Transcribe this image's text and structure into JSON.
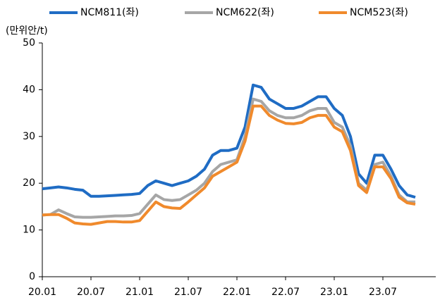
{
  "chart_data": {
    "type": "line",
    "y_unit": "(만위안/t)",
    "categories": [
      "20.01",
      null,
      null,
      null,
      null,
      null,
      "20.07",
      null,
      null,
      null,
      null,
      null,
      "21.01",
      null,
      null,
      null,
      null,
      null,
      "21.07",
      null,
      null,
      null,
      null,
      null,
      "22.01",
      null,
      null,
      null,
      null,
      null,
      "22.07",
      null,
      null,
      null,
      null,
      null,
      "23.01",
      null,
      null,
      null,
      null,
      null,
      "23.07",
      null,
      null,
      null,
      null
    ],
    "series": [
      {
        "name": "NCM811(좌)",
        "color": "#1f6cc4",
        "values": [
          18.8,
          19,
          19.2,
          19,
          18.7,
          18.5,
          17.2,
          17.2,
          17.3,
          17.4,
          17.5,
          17.6,
          17.8,
          19.5,
          20.5,
          20,
          19.5,
          20,
          20.5,
          21.5,
          23,
          26,
          27,
          27,
          27.5,
          32,
          41,
          40.5,
          38,
          37,
          36,
          36,
          36.5,
          37.5,
          38.5,
          38.5,
          36,
          34.5,
          30,
          22,
          20,
          26,
          26,
          23,
          19.5,
          17.5,
          17
        ]
      },
      {
        "name": "NCM622(좌)",
        "color": "#a6a6a6",
        "values": [
          13.2,
          13.3,
          14.3,
          13.5,
          12.8,
          12.7,
          12.7,
          12.8,
          12.9,
          13,
          13,
          13.1,
          13.5,
          15.5,
          17.5,
          16.5,
          16.3,
          16.5,
          17.5,
          18.5,
          20,
          22.5,
          24,
          24.5,
          25,
          30,
          38,
          37.5,
          35.5,
          34.5,
          34,
          34,
          34.5,
          35.5,
          36,
          36,
          33,
          32,
          28,
          20,
          18.5,
          24,
          24.5,
          21.5,
          17.5,
          16,
          16
        ]
      },
      {
        "name": "NCM523(좌)",
        "color": "#f08a2c",
        "values": [
          13.2,
          13.3,
          13.3,
          12.5,
          11.5,
          11.3,
          11.2,
          11.5,
          11.8,
          11.8,
          11.7,
          11.7,
          12,
          14,
          16,
          15,
          14.7,
          14.6,
          16,
          17.5,
          19,
          21.5,
          22.5,
          23.5,
          24.5,
          29,
          36.5,
          36.5,
          34.5,
          33.5,
          32.8,
          32.7,
          33,
          34,
          34.5,
          34.5,
          32,
          31,
          27,
          19.5,
          18,
          23.5,
          23.5,
          21,
          17,
          15.8,
          15.5
        ]
      }
    ],
    "ylim": [
      0,
      50
    ],
    "yticks": [
      0,
      10,
      20,
      30,
      40,
      50
    ],
    "grid": false
  }
}
